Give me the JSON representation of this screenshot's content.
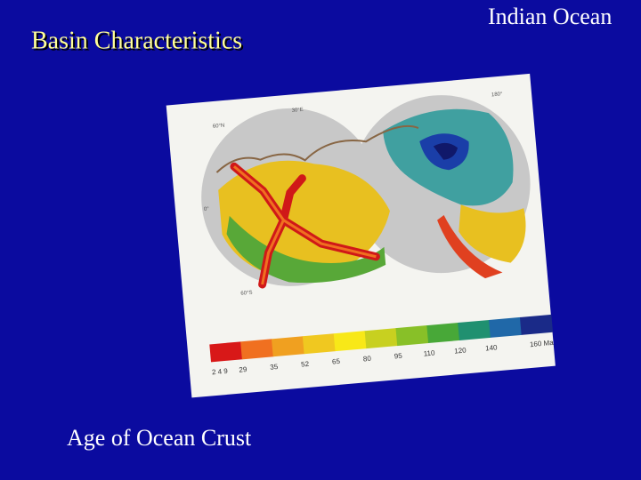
{
  "slide": {
    "title": "Basin Characteristics",
    "heading": "Indian Ocean",
    "caption": "Age of Ocean Crust"
  },
  "map": {
    "legend_labels": [
      "2 4 9",
      "29",
      "35",
      "52",
      "65",
      "80",
      "95",
      "110",
      "120",
      "140",
      "160 Ma"
    ],
    "graticule_labels": [
      "60°N",
      "30°E",
      "0°",
      "60°S",
      "180°"
    ]
  }
}
